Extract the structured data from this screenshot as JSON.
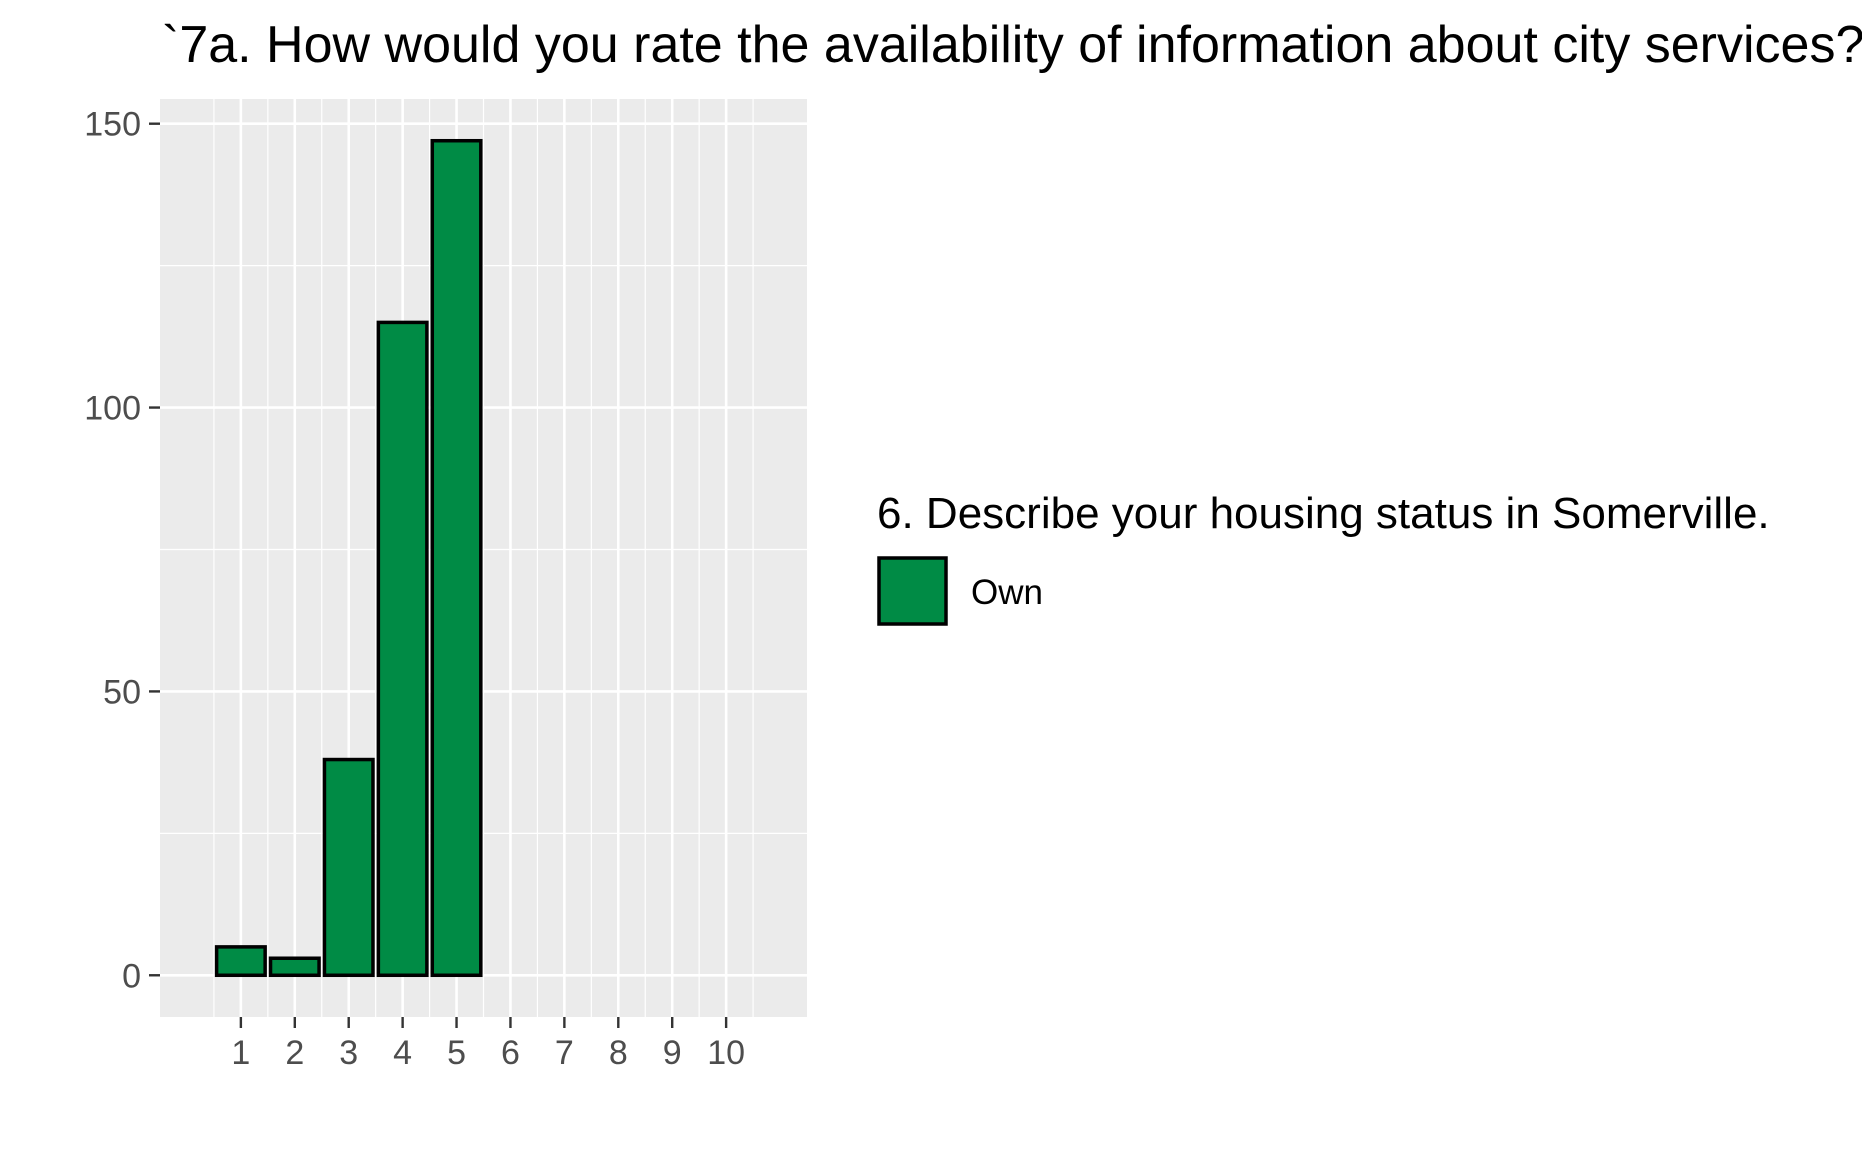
{
  "chart_data": {
    "type": "bar",
    "title": "`7a. How would you rate the availability of information about city services?",
    "xlabel": "",
    "ylabel": "",
    "categories": [
      "1",
      "2",
      "3",
      "4",
      "5",
      "6",
      "7",
      "8",
      "9",
      "10"
    ],
    "series": [
      {
        "name": "Own",
        "values": [
          5,
          3,
          38,
          115,
          147,
          0,
          0,
          0,
          0,
          0
        ],
        "color": "#008B45"
      }
    ],
    "yticks": [
      "0",
      "50",
      "100",
      "150"
    ],
    "ylim": [
      -7.35,
      154.35
    ],
    "xlim": [
      -0.5,
      11.5
    ],
    "grid": true,
    "panel_background": "#EBEBEB",
    "grid_color": "#FFFFFF",
    "bar_outline": "#000000",
    "legend": {
      "title": "6. Describe your housing status in Somerville.",
      "position": "right",
      "items": [
        {
          "label": "Own",
          "color": "#008B45"
        }
      ]
    }
  }
}
